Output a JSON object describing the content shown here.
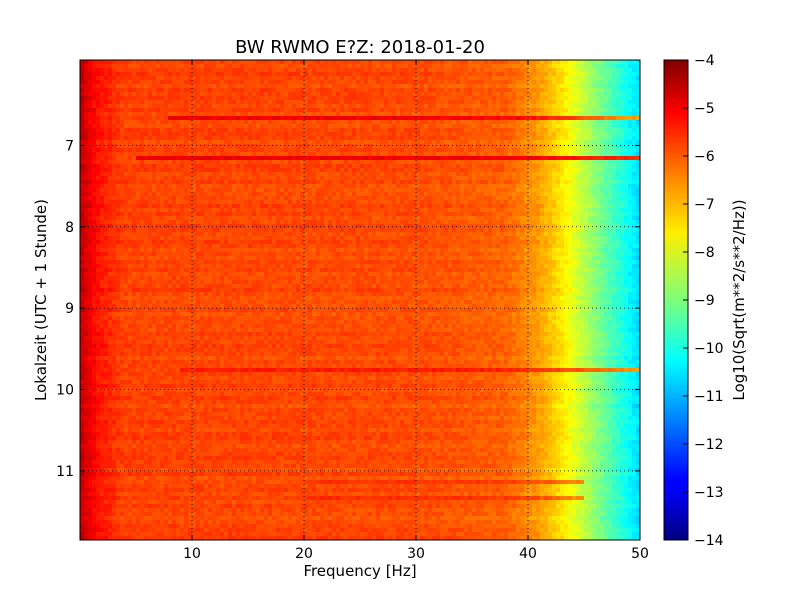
{
  "chart_data": {
    "type": "heatmap",
    "title": "BW RWMO E?Z: 2018-01-20",
    "xlabel": "Frequency [Hz]",
    "ylabel": "Lokalzeit (UTC + 1 Stunde)",
    "xlim": [
      0,
      50
    ],
    "ylim": [
      5.95,
      11.85
    ],
    "y_axis_inverted": true,
    "xticks": [
      10,
      20,
      30,
      40,
      50
    ],
    "xtick_labels": [
      "10",
      "20",
      "30",
      "40",
      "50"
    ],
    "yticks": [
      7,
      8,
      9,
      10,
      11
    ],
    "ytick_labels": [
      "7",
      "8",
      "9",
      "10",
      "11"
    ],
    "grid": true,
    "colormap": "jet",
    "colorbar": {
      "label": "Log10(Sqrt(m**2/s**2/Hz))",
      "range": [
        -14,
        -4
      ],
      "ticks": [
        -4,
        -5,
        -6,
        -7,
        -8,
        -9,
        -10,
        -11,
        -12,
        -13,
        -14
      ],
      "tick_labels": [
        "−4",
        "−5",
        "−6",
        "−7",
        "−8",
        "−9",
        "−10",
        "−11",
        "−12",
        "−13",
        "−14"
      ]
    },
    "spectrum_profile": [
      {
        "freq_hz": 0,
        "level": -4.6
      },
      {
        "freq_hz": 1.5,
        "level": -5.4
      },
      {
        "freq_hz": 4,
        "level": -5.9
      },
      {
        "freq_hz": 30,
        "level": -6.0
      },
      {
        "freq_hz": 38,
        "level": -6.2
      },
      {
        "freq_hz": 41,
        "level": -6.8
      },
      {
        "freq_hz": 43,
        "level": -7.5
      },
      {
        "freq_hz": 45,
        "level": -8.4
      },
      {
        "freq_hz": 47,
        "level": -9.3
      },
      {
        "freq_hz": 49,
        "level": -10.2
      },
      {
        "freq_hz": 50,
        "level": -10.6
      }
    ],
    "strong_bands": [
      {
        "time": 6.65,
        "freq_range": [
          8,
          50
        ],
        "level": -4.7
      },
      {
        "time": 7.15,
        "freq_range": [
          5,
          50
        ],
        "level": -5.0
      },
      {
        "time": 9.77,
        "freq_range": [
          9,
          50
        ],
        "level": -5.3
      },
      {
        "time": 11.35,
        "freq_range": [
          20,
          45
        ],
        "level": -5.4
      },
      {
        "time": 11.15,
        "freq_range": [
          20,
          45
        ],
        "level": -5.6
      }
    ]
  }
}
